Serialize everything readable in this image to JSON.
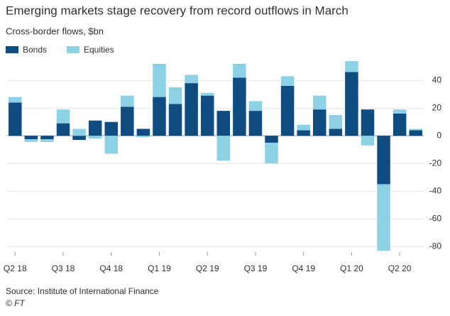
{
  "chart_data": {
    "type": "stacked_bar",
    "title": "Emerging markets stage recovery from record outflows in March",
    "subtitle": "Cross-border flows, $bn",
    "source": "Source: Institute of International Finance",
    "credit": "© FT",
    "categories": [
      "Q2 18",
      null,
      null,
      "Q3 18",
      null,
      null,
      "Q4 18",
      null,
      null,
      "Q1 19",
      null,
      null,
      "Q2 19",
      null,
      null,
      "Q3 19",
      null,
      null,
      "Q4 19",
      null,
      null,
      "Q1 20",
      null,
      null,
      "Q2 20",
      null
    ],
    "series": [
      {
        "name": "Bonds",
        "color": "#0f4c81",
        "values": [
          24,
          -2.5,
          -2.5,
          9,
          -3,
          11,
          10,
          21,
          5,
          28,
          23,
          38,
          29,
          18,
          42,
          18,
          -5,
          36,
          4,
          19,
          5,
          46,
          19,
          -35,
          16,
          4
        ]
      },
      {
        "name": "Equities",
        "color": "#8dd1e6",
        "values": [
          4,
          -2,
          -2,
          10,
          5,
          -2,
          -13,
          8,
          -1,
          24,
          12,
          6,
          2,
          -18,
          10,
          7,
          -15,
          7,
          4,
          10,
          10,
          8,
          -7,
          -48,
          3,
          1
        ]
      }
    ],
    "ylim": [
      -84,
      56
    ],
    "yticks": [
      40,
      20,
      0,
      -20,
      -40,
      -60,
      -80
    ],
    "grid": true,
    "legend": "top-left"
  }
}
